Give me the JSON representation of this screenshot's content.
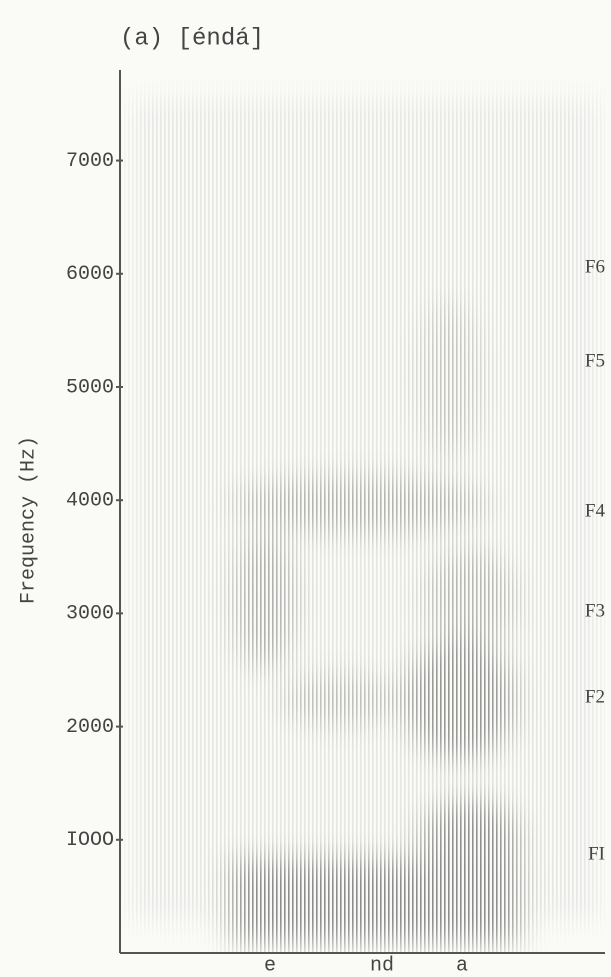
{
  "chart_data": {
    "type": "spectrogram",
    "title": "(a) [éndá]",
    "y_label": "Frequency (Hz)",
    "categories": [
      "e",
      "nd",
      "a"
    ],
    "ylim": [
      0,
      7800
    ],
    "yticks": [
      {
        "value": 1000,
        "label": "IOOO"
      },
      2000,
      3000,
      4000,
      5000,
      6000,
      7000
    ],
    "formants": [
      "FI",
      "F2",
      "F3",
      "F4",
      "F5",
      "F6"
    ]
  }
}
